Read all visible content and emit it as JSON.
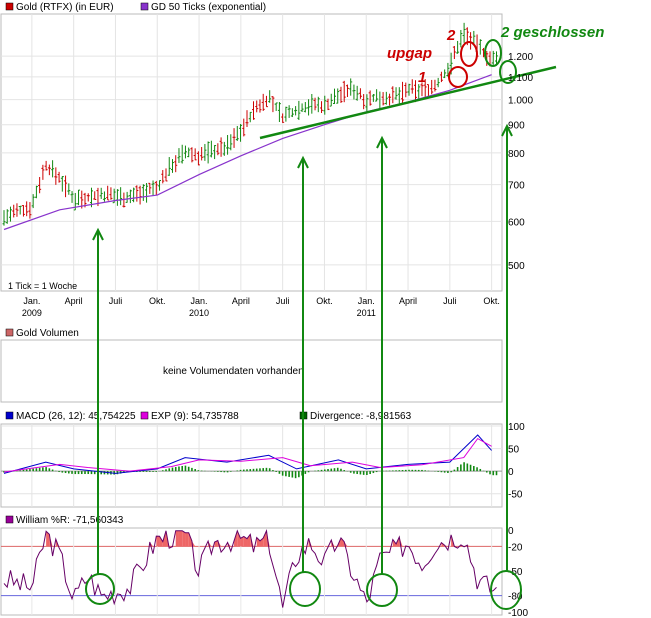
{
  "chart_data": [
    {
      "type": "ohlc",
      "scale": "log",
      "ylim": [
        450,
        1420
      ],
      "y_ticks": [
        "500",
        "600",
        "700",
        "800",
        "900",
        "1.000",
        "1.100",
        "1.200"
      ],
      "y_tick_values": [
        500,
        600,
        700,
        800,
        900,
        1000,
        1100,
        1200
      ],
      "x_ticks": [
        {
          "label": "Jan.",
          "year": "2009"
        },
        {
          "label": "April"
        },
        {
          "label": "Juli"
        },
        {
          "label": "Okt."
        },
        {
          "label": "Jan.",
          "year": "2010"
        },
        {
          "label": "April"
        },
        {
          "label": "Juli"
        },
        {
          "label": "Okt."
        },
        {
          "label": "Jan.",
          "year": "2011"
        },
        {
          "label": "April"
        },
        {
          "label": "Juli"
        },
        {
          "label": "Okt."
        }
      ],
      "x_tick_dates": [
        "2009-01",
        "2009-04",
        "2009-07",
        "2009-10",
        "2010-01",
        "2010-04",
        "2010-07",
        "2010-10",
        "2011-01",
        "2011-04",
        "2011-07",
        "2011-10"
      ],
      "x_range": [
        "2008-11",
        "2011-10"
      ],
      "legend": [
        {
          "label": "Gold (RTFX) (in EUR)",
          "color": "#cc0000"
        },
        {
          "label": "GD 50 Ticks (exponential)",
          "color": "#8833cc"
        }
      ],
      "note": "1 Tick = 1 Woche",
      "close_series": [
        {
          "date": "2008-11",
          "value": 610
        },
        {
          "date": "2009-01",
          "value": 640
        },
        {
          "date": "2009-02",
          "value": 760
        },
        {
          "date": "2009-03",
          "value": 720
        },
        {
          "date": "2009-04",
          "value": 660
        },
        {
          "date": "2009-06",
          "value": 670
        },
        {
          "date": "2009-08",
          "value": 665
        },
        {
          "date": "2009-09",
          "value": 680
        },
        {
          "date": "2009-10",
          "value": 690
        },
        {
          "date": "2009-11",
          "value": 760
        },
        {
          "date": "2009-12",
          "value": 800
        },
        {
          "date": "2010-01",
          "value": 790
        },
        {
          "date": "2010-02",
          "value": 810
        },
        {
          "date": "2010-03",
          "value": 820
        },
        {
          "date": "2010-04",
          "value": 880
        },
        {
          "date": "2010-05",
          "value": 960
        },
        {
          "date": "2010-06",
          "value": 1010
        },
        {
          "date": "2010-07",
          "value": 930
        },
        {
          "date": "2010-08",
          "value": 960
        },
        {
          "date": "2010-09",
          "value": 980
        },
        {
          "date": "2010-10",
          "value": 975
        },
        {
          "date": "2010-11",
          "value": 1020
        },
        {
          "date": "2010-12",
          "value": 1050
        },
        {
          "date": "2011-01",
          "value": 1000
        },
        {
          "date": "2011-02",
          "value": 1010
        },
        {
          "date": "2011-03",
          "value": 1010
        },
        {
          "date": "2011-04",
          "value": 1040
        },
        {
          "date": "2011-05",
          "value": 1040
        },
        {
          "date": "2011-06",
          "value": 1060
        },
        {
          "date": "2011-07",
          "value": 1150
        },
        {
          "date": "2011-08",
          "value": 1330
        },
        {
          "date": "2011-09",
          "value": 1250
        },
        {
          "date": "2011-10",
          "value": 1180
        }
      ],
      "ema_series": [
        {
          "date": "2008-11",
          "value": 580
        },
        {
          "date": "2009-03",
          "value": 630
        },
        {
          "date": "2009-07",
          "value": 655
        },
        {
          "date": "2009-10",
          "value": 670
        },
        {
          "date": "2010-01",
          "value": 730
        },
        {
          "date": "2010-04",
          "value": 790
        },
        {
          "date": "2010-07",
          "value": 850
        },
        {
          "date": "2010-10",
          "value": 900
        },
        {
          "date": "2011-01",
          "value": 950
        },
        {
          "date": "2011-04",
          "value": 990
        },
        {
          "date": "2011-07",
          "value": 1040
        },
        {
          "date": "2011-10",
          "value": 1110
        }
      ],
      "annotations": [
        {
          "text": "upgap",
          "color": "#cc0000"
        },
        {
          "text": "1",
          "color": "#cc0000"
        },
        {
          "text": "2",
          "color": "#cc0000"
        },
        {
          "text": "2 geschlossen",
          "color": "#118811"
        }
      ]
    },
    {
      "type": "bar",
      "legend": [
        {
          "label": "Gold Volumen",
          "color": "#cc6666"
        }
      ],
      "message": "keine Volumendaten vorhanden"
    },
    {
      "type": "line",
      "ylim": [
        -75,
        100
      ],
      "y_ticks": [
        "100",
        "50",
        "0",
        "-50"
      ],
      "y_tick_values": [
        100,
        50,
        0,
        -50
      ],
      "legend": [
        {
          "label": "MACD (26, 12): 45,754225",
          "color": "#0000cc"
        },
        {
          "label": "EXP (9): 54,735788",
          "color": "#dd00dd"
        },
        {
          "label": "Divergence: -8,981563",
          "color": "#006600"
        }
      ],
      "series": [
        {
          "name": "MACD (26, 12)",
          "points": [
            {
              "date": "2008-11",
              "value": -5
            },
            {
              "date": "2009-02",
              "value": 20
            },
            {
              "date": "2009-04",
              "value": 5
            },
            {
              "date": "2009-07",
              "value": -5
            },
            {
              "date": "2009-10",
              "value": 5
            },
            {
              "date": "2009-12",
              "value": 30
            },
            {
              "date": "2010-03",
              "value": 20
            },
            {
              "date": "2010-06",
              "value": 35
            },
            {
              "date": "2010-08",
              "value": 5
            },
            {
              "date": "2010-11",
              "value": 25
            },
            {
              "date": "2011-01",
              "value": 5
            },
            {
              "date": "2011-04",
              "value": 15
            },
            {
              "date": "2011-07",
              "value": 20
            },
            {
              "date": "2011-09",
              "value": 80
            },
            {
              "date": "2011-10",
              "value": 46
            }
          ]
        },
        {
          "name": "EXP (9)",
          "points": [
            {
              "date": "2008-11",
              "value": -2
            },
            {
              "date": "2009-03",
              "value": 15
            },
            {
              "date": "2009-05",
              "value": 8
            },
            {
              "date": "2009-08",
              "value": 0
            },
            {
              "date": "2009-11",
              "value": 10
            },
            {
              "date": "2010-01",
              "value": 25
            },
            {
              "date": "2010-04",
              "value": 22
            },
            {
              "date": "2010-07",
              "value": 30
            },
            {
              "date": "2010-09",
              "value": 12
            },
            {
              "date": "2010-12",
              "value": 20
            },
            {
              "date": "2011-02",
              "value": 8
            },
            {
              "date": "2011-05",
              "value": 14
            },
            {
              "date": "2011-08",
              "value": 30
            },
            {
              "date": "2011-09",
              "value": 72
            },
            {
              "date": "2011-10",
              "value": 55
            }
          ]
        }
      ]
    },
    {
      "type": "line",
      "ylim": [
        -100,
        0
      ],
      "y_ticks": [
        "0",
        "-20",
        "-50",
        "-80",
        "-100"
      ],
      "y_tick_values": [
        0,
        -20,
        -50,
        -80,
        -100
      ],
      "legend": [
        {
          "label": "William %R: -71,560343",
          "color": "#990099"
        }
      ],
      "reference_lines": [
        {
          "value": -20,
          "color": "#dd6666"
        },
        {
          "value": -80,
          "color": "#6666dd"
        }
      ],
      "series": [
        {
          "name": "William %R",
          "points": [
            {
              "date": "2008-11",
              "value": -60
            },
            {
              "date": "2009-01",
              "value": -70
            },
            {
              "date": "2009-02",
              "value": -5
            },
            {
              "date": "2009-03",
              "value": -30
            },
            {
              "date": "2009-04",
              "value": -85
            },
            {
              "date": "2009-05",
              "value": -55
            },
            {
              "date": "2009-06",
              "value": -80
            },
            {
              "date": "2009-08",
              "value": -70
            },
            {
              "date": "2009-09",
              "value": -40
            },
            {
              "date": "2009-10",
              "value": -10
            },
            {
              "date": "2009-12",
              "value": -5
            },
            {
              "date": "2010-01",
              "value": -50
            },
            {
              "date": "2010-02",
              "value": -15
            },
            {
              "date": "2010-04",
              "value": -10
            },
            {
              "date": "2010-05",
              "value": -20
            },
            {
              "date": "2010-06",
              "value": -10
            },
            {
              "date": "2010-07",
              "value": -95
            },
            {
              "date": "2010-08",
              "value": -30
            },
            {
              "date": "2010-09",
              "value": -15
            },
            {
              "date": "2010-10",
              "value": -40
            },
            {
              "date": "2010-11",
              "value": -10
            },
            {
              "date": "2011-01",
              "value": -90
            },
            {
              "date": "2011-02",
              "value": -35
            },
            {
              "date": "2011-04",
              "value": -15
            },
            {
              "date": "2011-05",
              "value": -40
            },
            {
              "date": "2011-06",
              "value": -15
            },
            {
              "date": "2011-08",
              "value": -5
            },
            {
              "date": "2011-09",
              "value": -60
            },
            {
              "date": "2011-10",
              "value": -72
            }
          ]
        }
      ]
    }
  ]
}
